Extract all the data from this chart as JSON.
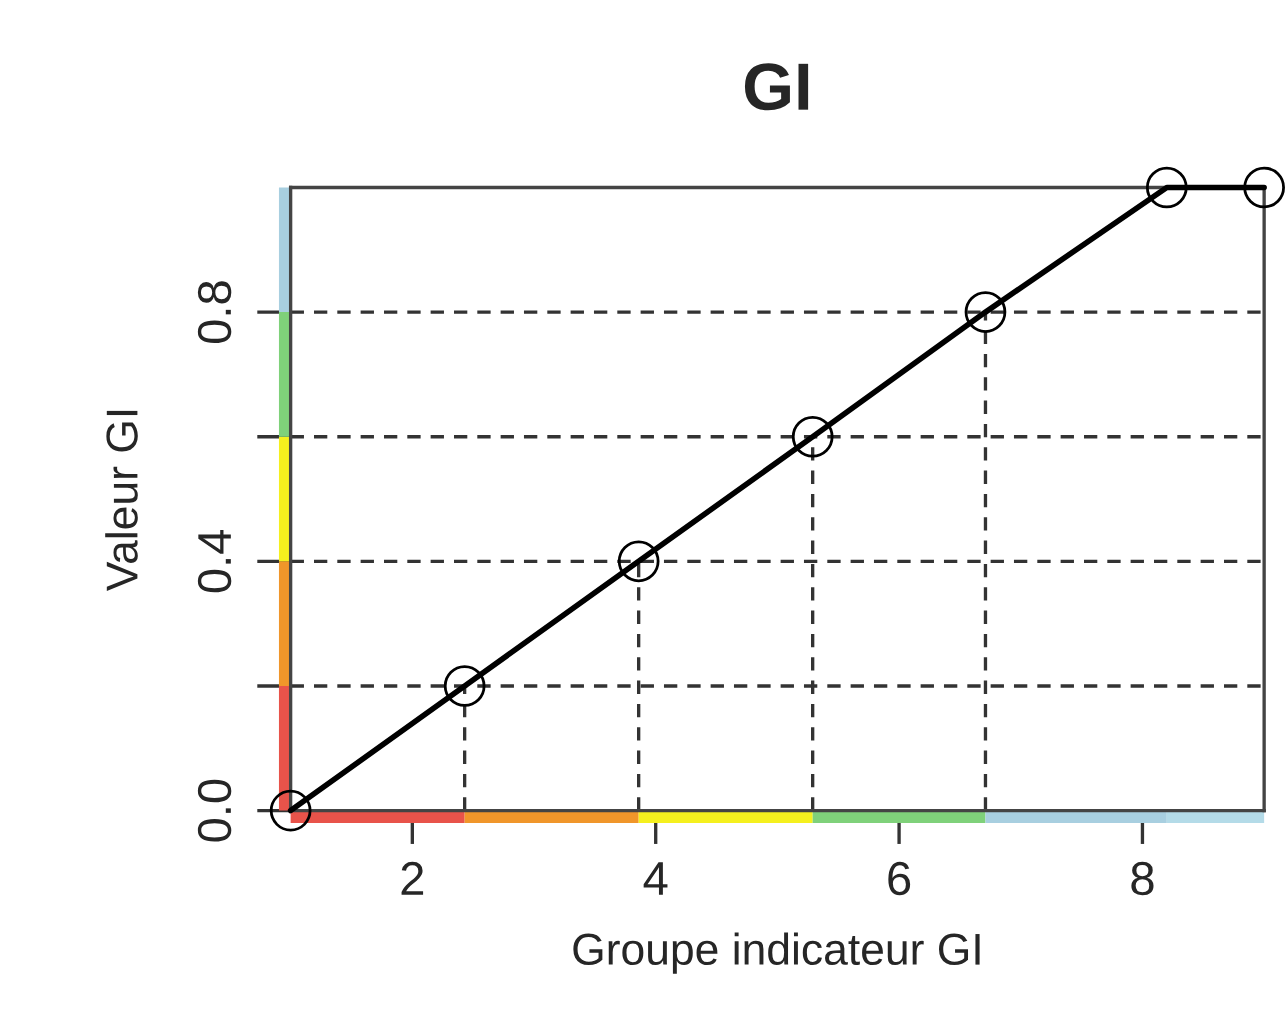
{
  "chart_data": {
    "type": "line",
    "title": "GI",
    "xlabel": "Groupe indicateur GI",
    "ylabel": "Valeur GI",
    "x": [
      1,
      2.43,
      3.86,
      5.29,
      6.71,
      8.2,
      9
    ],
    "series": [
      {
        "color": "#000000",
        "values": [
          0,
          0.2,
          0.4,
          0.6,
          0.8,
          1.0,
          1.0
        ]
      }
    ],
    "marker": "circle",
    "line_style": "solid",
    "grid": false,
    "legend": false,
    "xlim": [
      1,
      9
    ],
    "xticks": [
      2,
      4,
      6,
      8
    ],
    "ylim": [
      0,
      1
    ],
    "yticks": [
      {
        "value": 0,
        "label": "0.0"
      },
      {
        "value": 0.2,
        "label": null
      },
      {
        "value": 0.4,
        "label": "0.4"
      },
      {
        "value": 0.6,
        "label": null
      },
      {
        "value": 0.8,
        "label": "0.8"
      }
    ],
    "ref_lines": [
      {
        "axis": "y",
        "value": 0.2,
        "line_style": "dashed"
      },
      {
        "axis": "y",
        "value": 0.4,
        "line_style": "dashed"
      },
      {
        "axis": "y",
        "value": 0.6,
        "line_style": "dashed"
      },
      {
        "axis": "y",
        "value": 0.8,
        "line_style": "dashed"
      },
      {
        "axis": "x",
        "value": 2.43,
        "line_style": "dashed"
      },
      {
        "axis": "x",
        "value": 3.86,
        "line_style": "dashed"
      },
      {
        "axis": "x",
        "value": 5.29,
        "line_style": "dashed"
      },
      {
        "axis": "x",
        "value": 6.71,
        "line_style": "dashed"
      }
    ]
  }
}
